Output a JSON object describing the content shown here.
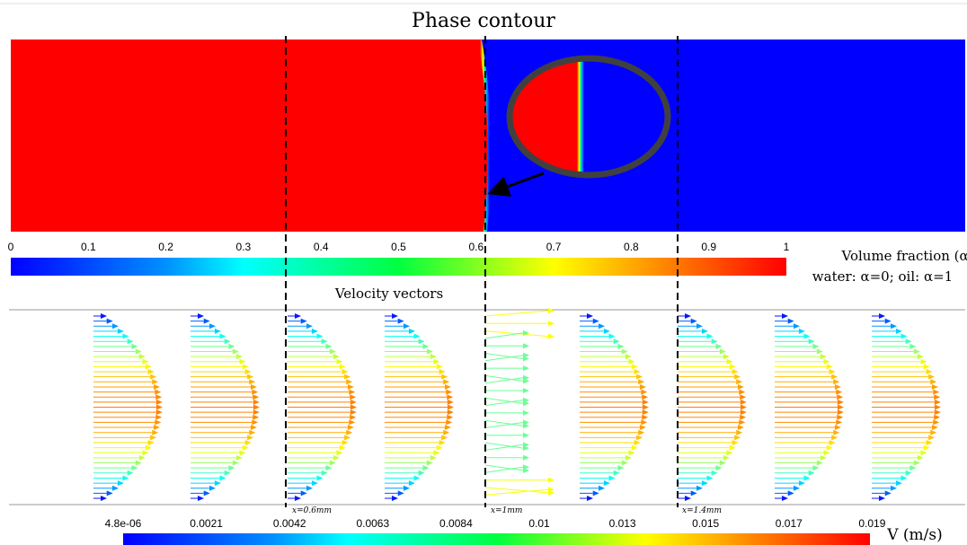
{
  "phase_panel": {
    "title": "Phase contour",
    "colorbar": {
      "ticks": [
        "0",
        "0.1",
        "0.2",
        "0.3",
        "0.4",
        "0.5",
        "0.6",
        "0.7",
        "0.8",
        "0.9",
        "1"
      ],
      "label": "Volume fraction (α)",
      "note": "water: α=0; oil: α=1"
    }
  },
  "velocity_panel": {
    "title": "Velocity vectors",
    "markers": [
      "x=0.6mm",
      "x=1mm",
      "x=1.4mm"
    ],
    "colorbar": {
      "ticks": [
        "4.8e-06",
        "0.0021",
        "0.0042",
        "0.0063",
        "0.0084",
        "0.01",
        "0.013",
        "0.015",
        "0.017",
        "0.019"
      ],
      "label": "V (m/s)"
    }
  }
}
